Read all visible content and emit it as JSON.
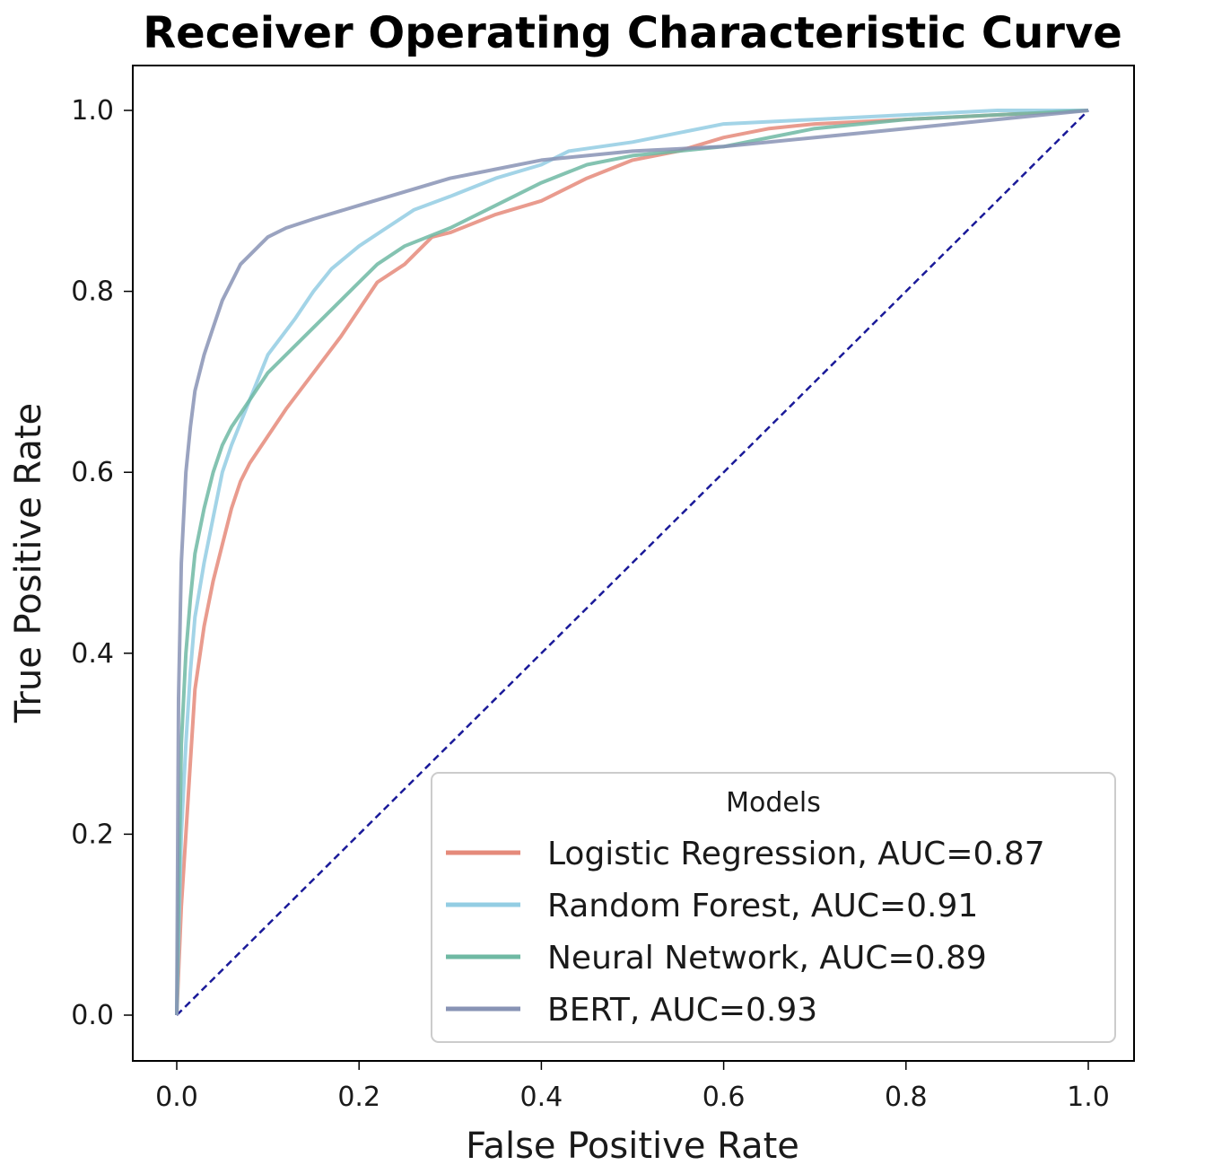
{
  "chart_data": {
    "type": "line",
    "title": "Receiver Operating Characteristic Curve",
    "xlabel": "False Positive Rate",
    "ylabel": "True Positive Rate",
    "xlim": [
      -0.05,
      1.05
    ],
    "ylim": [
      -0.05,
      1.05
    ],
    "x_ticks": [
      "0.0",
      "0.2",
      "0.4",
      "0.6",
      "0.8",
      "1.0"
    ],
    "y_ticks": [
      "0.0",
      "0.2",
      "0.4",
      "0.6",
      "0.8",
      "1.0"
    ],
    "grid": false,
    "legend": {
      "title": "Models",
      "placement": "lower-right"
    },
    "series": [
      {
        "name": "Logistic Regression, AUC=0.87",
        "color": "#e58a7a",
        "x": [
          0,
          0.005,
          0.01,
          0.015,
          0.02,
          0.03,
          0.04,
          0.05,
          0.06,
          0.07,
          0.08,
          0.1,
          0.12,
          0.15,
          0.18,
          0.2,
          0.22,
          0.25,
          0.28,
          0.3,
          0.35,
          0.4,
          0.45,
          0.5,
          0.55,
          0.6,
          0.65,
          0.7,
          0.8,
          0.9,
          1.0
        ],
        "y": [
          0,
          0.12,
          0.2,
          0.28,
          0.36,
          0.43,
          0.48,
          0.52,
          0.56,
          0.59,
          0.61,
          0.64,
          0.67,
          0.71,
          0.75,
          0.78,
          0.81,
          0.83,
          0.86,
          0.865,
          0.885,
          0.9,
          0.925,
          0.945,
          0.955,
          0.97,
          0.98,
          0.985,
          0.99,
          0.995,
          1.0
        ]
      },
      {
        "name": "Random Forest, AUC=0.91",
        "color": "#93cde3",
        "x": [
          0,
          0.005,
          0.01,
          0.015,
          0.02,
          0.03,
          0.04,
          0.05,
          0.06,
          0.08,
          0.1,
          0.13,
          0.15,
          0.17,
          0.2,
          0.23,
          0.26,
          0.3,
          0.35,
          0.4,
          0.43,
          0.5,
          0.55,
          0.6,
          0.7,
          0.8,
          0.9,
          1.0
        ],
        "y": [
          0,
          0.2,
          0.3,
          0.38,
          0.44,
          0.5,
          0.55,
          0.6,
          0.63,
          0.68,
          0.73,
          0.77,
          0.8,
          0.825,
          0.85,
          0.87,
          0.89,
          0.905,
          0.925,
          0.94,
          0.955,
          0.965,
          0.975,
          0.985,
          0.99,
          0.995,
          1.0,
          1.0
        ]
      },
      {
        "name": "Neural Network, AUC=0.89",
        "color": "#6fb9a3",
        "x": [
          0,
          0.005,
          0.01,
          0.015,
          0.02,
          0.03,
          0.04,
          0.05,
          0.06,
          0.08,
          0.1,
          0.12,
          0.15,
          0.18,
          0.2,
          0.22,
          0.25,
          0.3,
          0.35,
          0.4,
          0.45,
          0.5,
          0.55,
          0.6,
          0.7,
          0.8,
          0.9,
          1.0
        ],
        "y": [
          0,
          0.3,
          0.4,
          0.46,
          0.51,
          0.56,
          0.6,
          0.63,
          0.65,
          0.68,
          0.71,
          0.73,
          0.76,
          0.79,
          0.81,
          0.83,
          0.85,
          0.87,
          0.895,
          0.92,
          0.94,
          0.95,
          0.955,
          0.96,
          0.98,
          0.99,
          0.995,
          1.0
        ]
      },
      {
        "name": "BERT, AUC=0.93",
        "color": "#8893b5",
        "x": [
          0,
          0.002,
          0.005,
          0.01,
          0.015,
          0.02,
          0.03,
          0.04,
          0.05,
          0.06,
          0.07,
          0.08,
          0.09,
          0.1,
          0.12,
          0.15,
          0.2,
          0.25,
          0.3,
          0.35,
          0.4,
          0.5,
          0.6,
          0.7,
          0.8,
          0.9,
          0.95,
          1.0
        ],
        "y": [
          0,
          0.35,
          0.5,
          0.6,
          0.65,
          0.69,
          0.73,
          0.76,
          0.79,
          0.81,
          0.83,
          0.84,
          0.85,
          0.86,
          0.87,
          0.88,
          0.895,
          0.91,
          0.925,
          0.935,
          0.945,
          0.955,
          0.96,
          0.97,
          0.98,
          0.99,
          0.995,
          1.0
        ]
      }
    ],
    "reference_line": {
      "x": [
        0,
        1
      ],
      "y": [
        0,
        1
      ],
      "color": "#1a1a99",
      "style": "dashed"
    }
  }
}
